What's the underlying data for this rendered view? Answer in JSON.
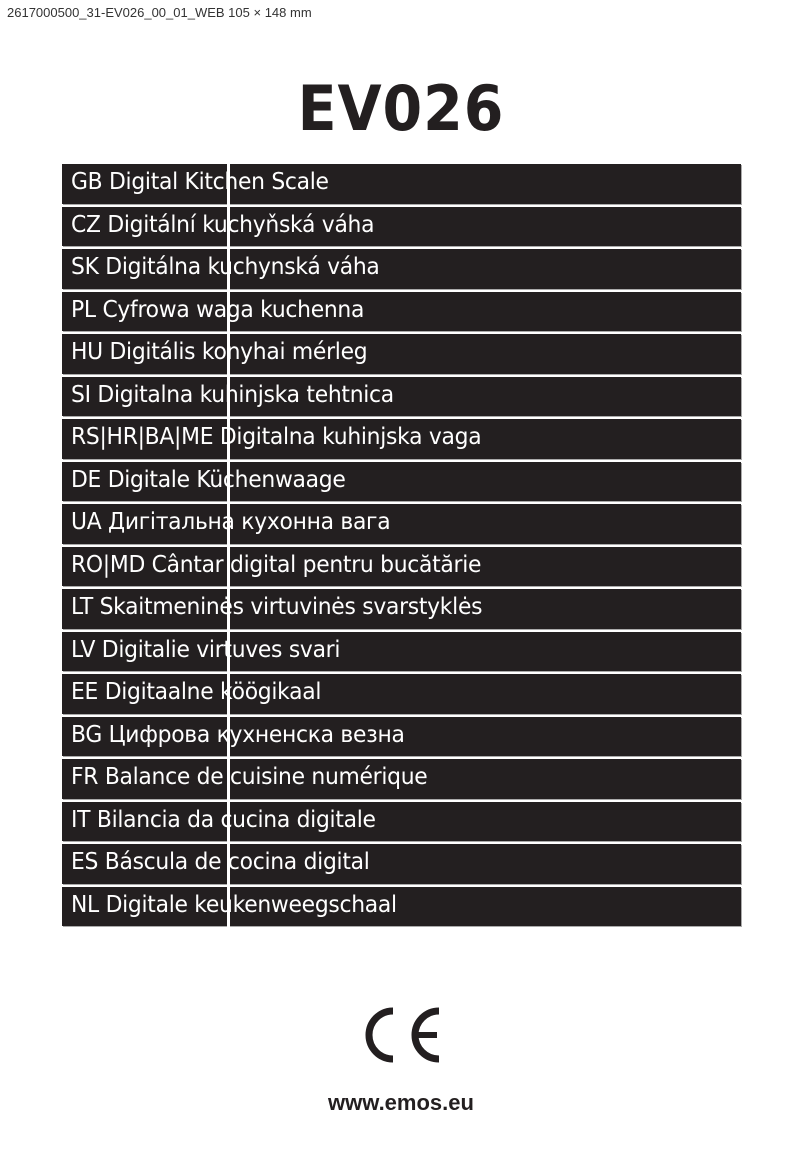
{
  "header": "2617000500_31-EV026_00_01_WEB  105 × 148 mm",
  "title": "EV026",
  "languages": [
    "GB Digital Kitchen Scale",
    "CZ Digitální kuchyňská váha",
    "SK Digitálna kuchynská váha",
    "PL Cyfrowa waga kuchenna",
    "HU Digitális konyhai mérleg",
    "SI Digitalna kuhinjska tehtnica",
    "RS|HR|BA|ME Digitalna kuhinjska vaga",
    "DE Digitale Küchenwaage",
    "UA Дигітальна кухонна вага",
    "RO|MD Cântar digital pentru bucătărie",
    "LT Skaitmeninės virtuvinės svarstyklės",
    "LV Digitalie virtuves svari",
    "EE Digitaalne köögikaal",
    "BG Цифрова кухненска везна",
    "FR Balance de cuisine numérique",
    "IT Bilancia da cucina digitale",
    "ES Báscula de cocina digital",
    "NL Digitale keukenweegschaal"
  ],
  "ce_mark": "CE",
  "website": "www.emos.eu",
  "colors": {
    "band": "#231f20",
    "text": "#ffffff"
  }
}
